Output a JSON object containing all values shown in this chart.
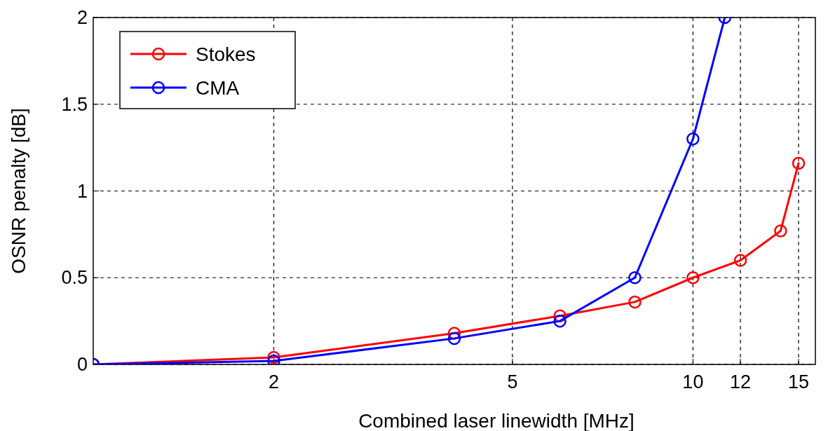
{
  "chart_data": {
    "type": "line",
    "xlabel": "Combined laser linewidth [MHz]",
    "ylabel": "OSNR penalty  [dB]",
    "log": "x",
    "xlim": [
      1,
      16
    ],
    "xticks": [
      2,
      5,
      10,
      12,
      15
    ],
    "ylim": [
      0,
      2
    ],
    "yticks": [
      0,
      0.5,
      1,
      1.5,
      2
    ],
    "grid": true,
    "legend": "top left",
    "marker": "circle",
    "line_style": "solid",
    "series": [
      {
        "name": "Stokes",
        "color": "#ff0000",
        "x": [
          1,
          2,
          4,
          6,
          8,
          10,
          12,
          14,
          15
        ],
        "values": [
          0,
          0.04,
          0.18,
          0.28,
          0.36,
          0.5,
          0.6,
          0.77,
          1.16
        ]
      },
      {
        "name": "CMA",
        "color": "#0000ff",
        "x": [
          1,
          2,
          4,
          6,
          8,
          10,
          11.3
        ],
        "values": [
          0,
          0.02,
          0.15,
          0.25,
          0.5,
          1.3,
          2
        ]
      }
    ]
  }
}
